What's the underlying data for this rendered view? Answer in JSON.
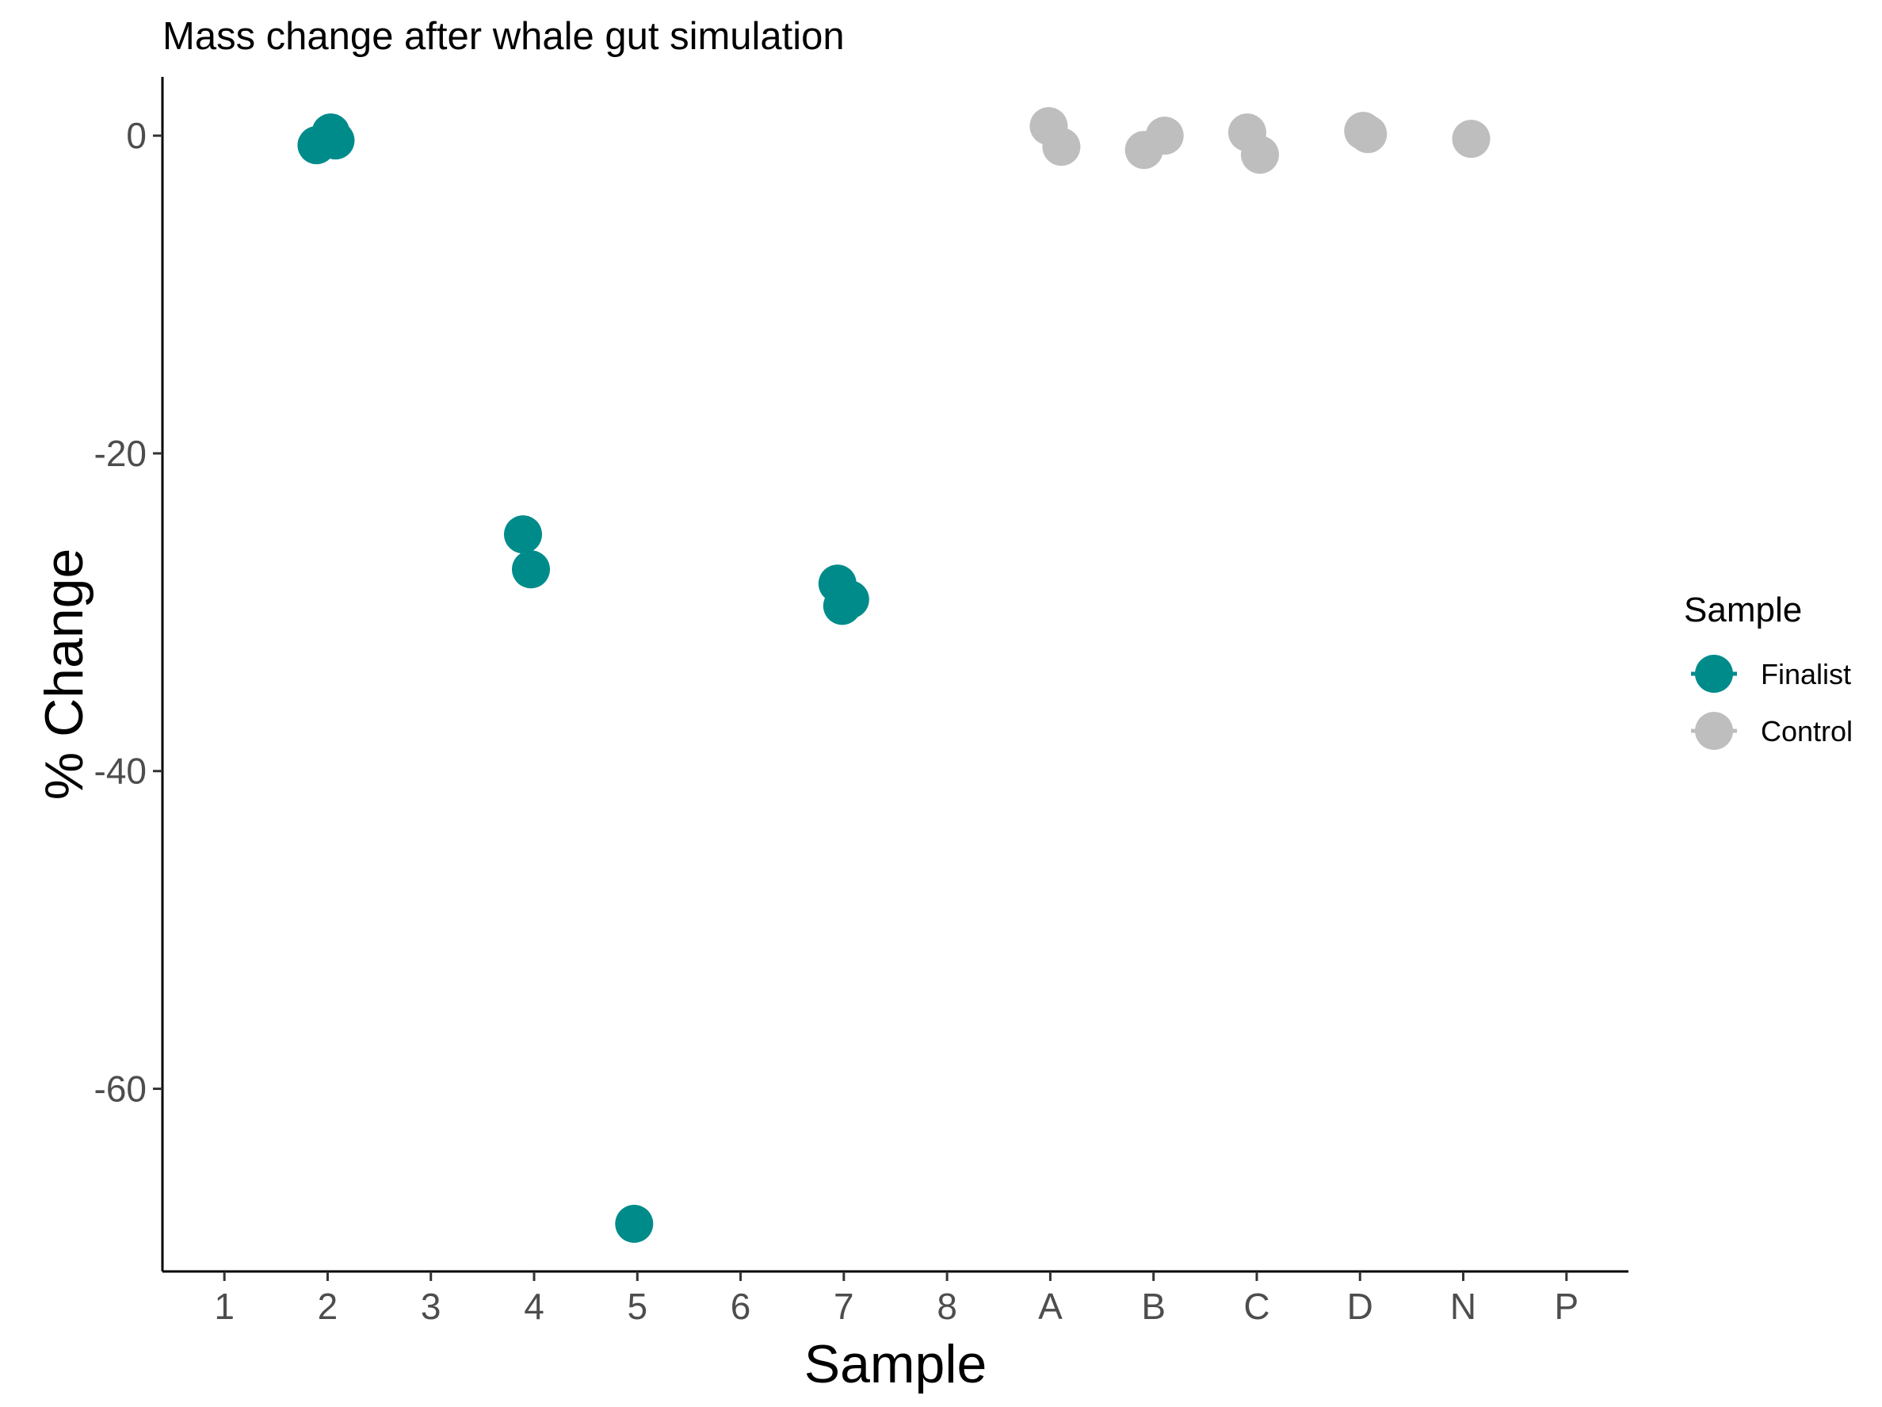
{
  "chart_data": {
    "type": "scatter",
    "title": "Mass change after whale gut simulation",
    "xlabel": "Sample",
    "ylabel": "% Change",
    "categories": [
      "1",
      "2",
      "3",
      "4",
      "5",
      "6",
      "7",
      "8",
      "A",
      "B",
      "C",
      "D",
      "N",
      "P"
    ],
    "yticks": [
      0,
      -20,
      -40,
      -60
    ],
    "ytick_labels": [
      "0",
      "-20",
      "-40",
      "-60"
    ],
    "ylim": [
      -71.5,
      3.7
    ],
    "grid": false,
    "legend": {
      "title": "Sample",
      "position": "right",
      "entries": [
        {
          "label": "Finalist",
          "color": "#008b8b"
        },
        {
          "label": "Control",
          "color": "#bebebe"
        }
      ]
    },
    "series": [
      {
        "name": "Finalist",
        "color": "#008b8b",
        "points": [
          {
            "x": "2",
            "y": 0.2
          },
          {
            "x": "2",
            "y": -0.3
          },
          {
            "x": "2",
            "y": -0.6
          },
          {
            "x": "4",
            "y": -25.1
          },
          {
            "x": "4",
            "y": -27.3
          },
          {
            "x": "5",
            "y": -68.5
          },
          {
            "x": "7",
            "y": -28.2
          },
          {
            "x": "7",
            "y": -29.2
          },
          {
            "x": "7",
            "y": -29.6
          }
        ]
      },
      {
        "name": "Control",
        "color": "#bebebe",
        "points": [
          {
            "x": "A",
            "y": 0.6
          },
          {
            "x": "A",
            "y": -0.7
          },
          {
            "x": "B",
            "y": 0.0
          },
          {
            "x": "B",
            "y": -0.9
          },
          {
            "x": "C",
            "y": 0.2
          },
          {
            "x": "C",
            "y": -1.2
          },
          {
            "x": "D",
            "y": 0.3
          },
          {
            "x": "D",
            "y": 0.1
          },
          {
            "x": "N",
            "y": -0.2
          }
        ]
      }
    ]
  }
}
